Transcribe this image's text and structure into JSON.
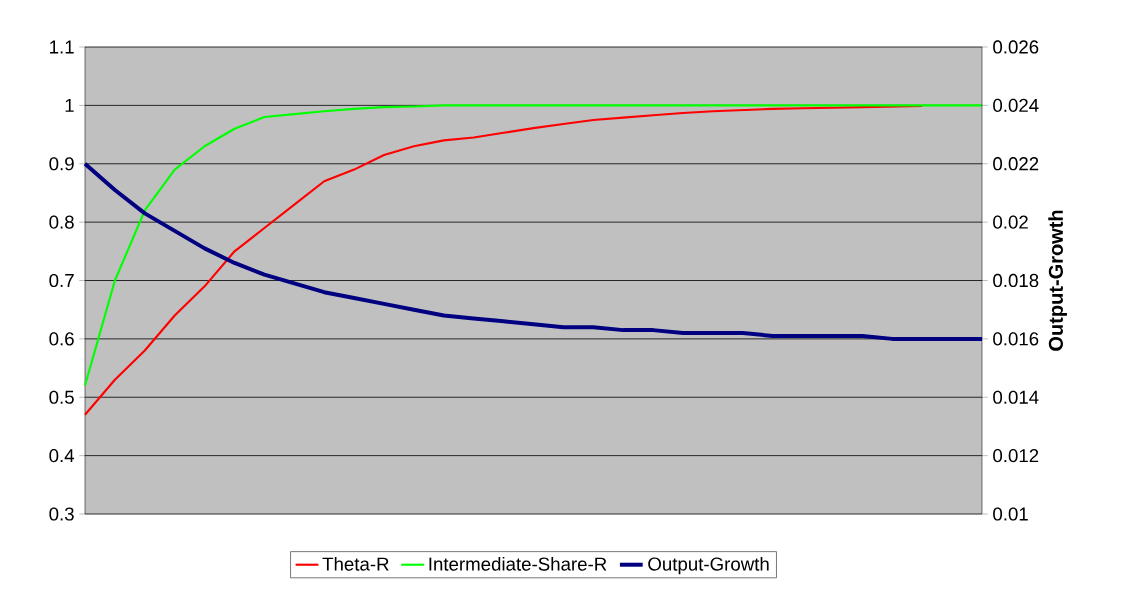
{
  "chart_data": {
    "type": "line",
    "categories": [
      null,
      null,
      null,
      null,
      null,
      null,
      null,
      null,
      null,
      null,
      null,
      null,
      null,
      null,
      null,
      null,
      null,
      null,
      null,
      null,
      null,
      null,
      null,
      null,
      null,
      null,
      null,
      null,
      null,
      null,
      null
    ],
    "series": [
      {
        "name": "Theta-R",
        "color": "#ff0000",
        "values": [
          0.47,
          0.53,
          0.58,
          0.64,
          0.69,
          0.75,
          0.79,
          0.83,
          0.87,
          0.89,
          0.915,
          0.93,
          0.94,
          0.945,
          0.953,
          0.961,
          0.968,
          0.975,
          0.979,
          0.983,
          0.987,
          0.99,
          0.992,
          0.994,
          0.995,
          0.996,
          0.997,
          0.998,
          0.999,
          null,
          null
        ]
      },
      {
        "name": "Intermediate-Share-R",
        "color": "#00ff00",
        "values": [
          0.52,
          0.7,
          0.82,
          0.89,
          0.93,
          0.96,
          0.98,
          0.985,
          0.99,
          0.994,
          0.997,
          0.998,
          1,
          1,
          1,
          1,
          1,
          1,
          1,
          1,
          1,
          1,
          1,
          1,
          1,
          1,
          1,
          1,
          1,
          1,
          1
        ]
      },
      {
        "name": "Output-Growth",
        "color": "#000080",
        "axis": "y2",
        "values": [
          0.022,
          0.0211,
          0.0203,
          0.0197,
          0.0191,
          0.0186,
          0.0182,
          0.0179,
          0.0176,
          0.0174,
          0.0172,
          0.017,
          0.0168,
          0.0167,
          0.0166,
          0.0165,
          0.0164,
          0.0164,
          0.0163,
          0.0163,
          0.0162,
          0.0162,
          0.0162,
          0.0161,
          0.0161,
          0.0161,
          0.0161,
          0.016,
          0.016,
          0.016,
          0.016
        ]
      }
    ],
    "ylim": [
      0.3,
      1.1
    ],
    "yticks": [
      0.3,
      0.4,
      0.5,
      0.6,
      0.7,
      0.8,
      0.9,
      1,
      1.1
    ],
    "y2lim": [
      0.01,
      0.026
    ],
    "y2ticks": [
      0.01,
      0.012,
      0.014,
      0.016,
      0.018,
      0.02,
      0.022,
      0.024,
      0.026
    ],
    "y2label": "Output-Growth",
    "grid": "y",
    "legend": "bottom",
    "marker": "none",
    "line_style": "solid"
  }
}
